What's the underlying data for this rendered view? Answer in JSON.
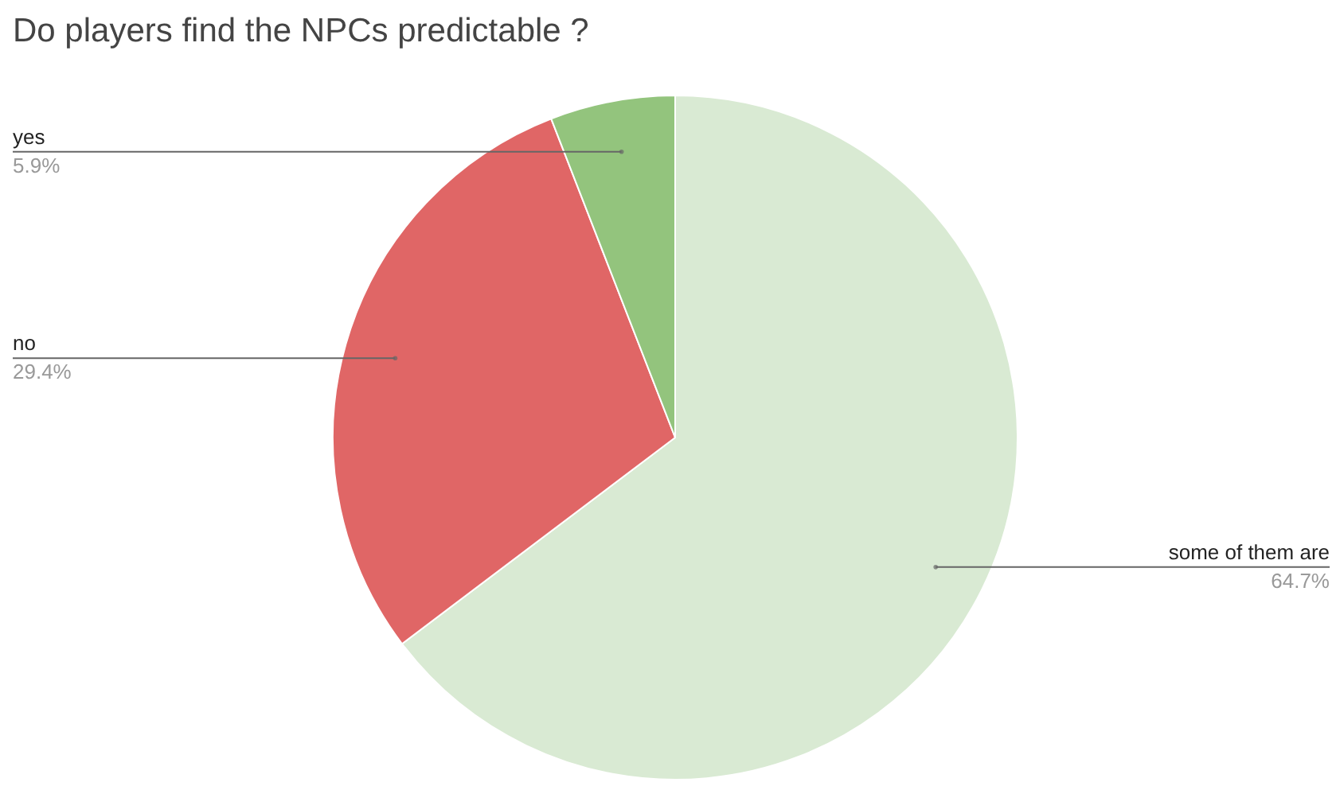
{
  "chart_data": {
    "type": "pie",
    "title": "Do players find the NPCs predictable ?",
    "categories": [
      "some of them are",
      "no",
      "yes"
    ],
    "values": [
      64.7,
      29.4,
      5.9
    ],
    "colors": [
      "#d9ead3",
      "#e06666",
      "#93c47d"
    ],
    "value_labels": [
      "64.7%",
      "29.4%",
      "5.9%"
    ]
  }
}
